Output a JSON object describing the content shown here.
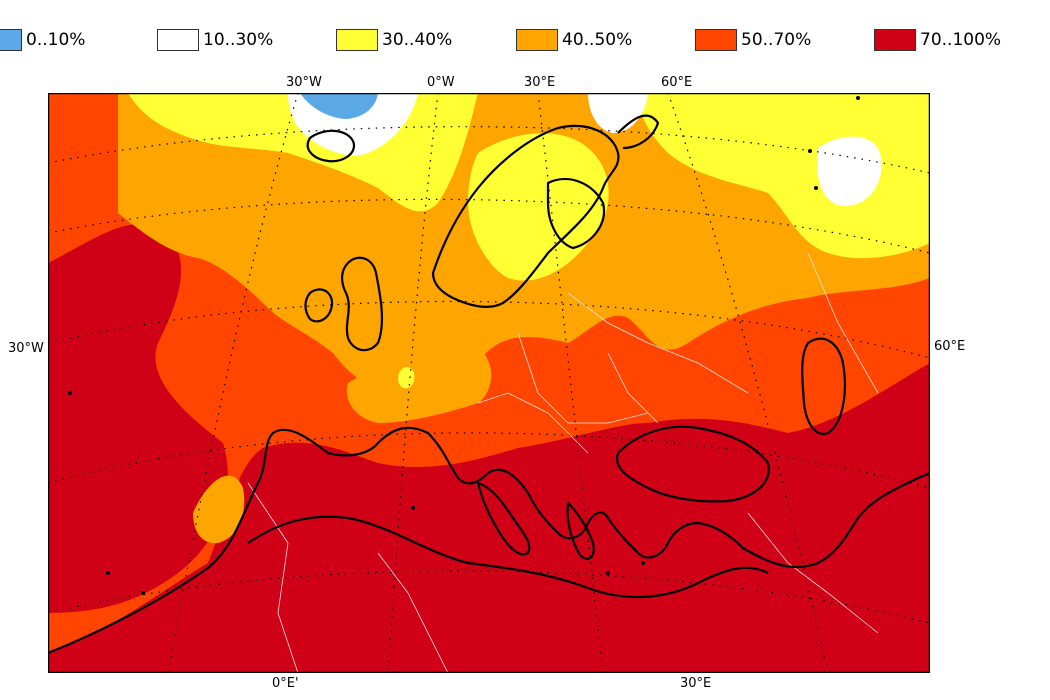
{
  "legend": {
    "items": [
      {
        "label": "0..10%",
        "color": "#5aa9e6"
      },
      {
        "label": "10..30%",
        "color": "#ffffff"
      },
      {
        "label": "30..40%",
        "color": "#ffff33"
      },
      {
        "label": "40..50%",
        "color": "#ffa500"
      },
      {
        "label": "50..70%",
        "color": "#ff4500"
      },
      {
        "label": "70..100%",
        "color": "#d00016"
      }
    ]
  },
  "map": {
    "coord_labels": {
      "top_30w": "30°W",
      "top_0w": "0°W",
      "top_30e": "30°E",
      "top_60e": "60°E",
      "left_30w": "30°W",
      "right_60e": "60°E",
      "bottom_0e": "0°E'",
      "bottom_30e": "30°E"
    },
    "colors": {
      "coastline": "#000000",
      "border": "#e0e0e0",
      "grid": "#000000"
    }
  }
}
